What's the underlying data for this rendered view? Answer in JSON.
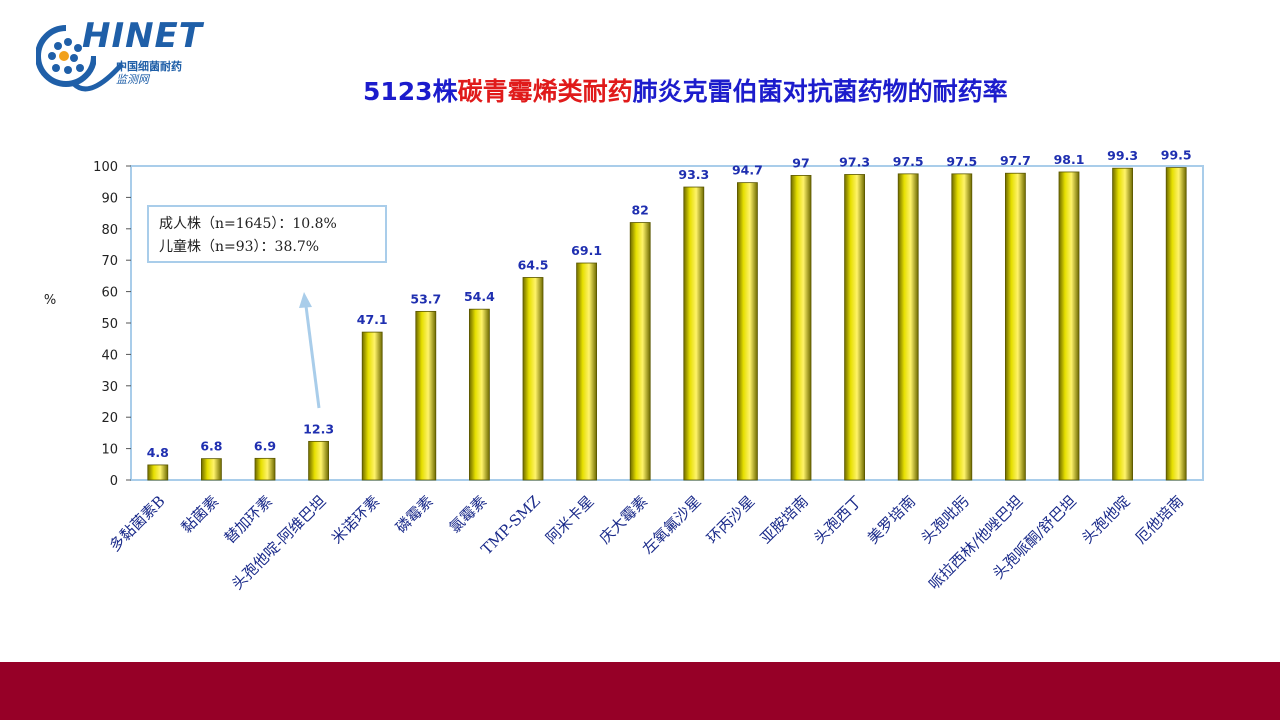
{
  "logo": {
    "text": "HINET",
    "cn_line1": "中国细菌耐药",
    "cn_line2": "监测网"
  },
  "title": {
    "part1": "5123株",
    "part2": "碳青霉烯类耐药",
    "part3": "肺炎克雷伯菌对抗菌药物的耐药率"
  },
  "colors": {
    "title_blue": "#1c1ccc",
    "title_red": "#e01b1b",
    "bar_fill": "#e6df00",
    "bar_edge": "#6e6a00",
    "value_label": "#1f2fb0",
    "frame": "#a9cdea",
    "footer": "#960027"
  },
  "chart_data": {
    "type": "bar",
    "ylabel": "%",
    "ylim": [
      0,
      100
    ],
    "yticks": [
      0,
      10,
      20,
      30,
      40,
      50,
      60,
      70,
      80,
      90,
      100
    ],
    "categories": [
      "多黏菌素B",
      "黏菌素",
      "替加环素",
      "头孢他啶-阿维巴坦",
      "米诺环素",
      "磷霉素",
      "氯霉素",
      "TMP-SMZ",
      "阿米卡星",
      "庆大霉素",
      "左氧氟沙星",
      "环丙沙星",
      "亚胺培南",
      "头孢西丁",
      "美罗培南",
      "头孢吡肟",
      "哌拉西林/他唑巴坦",
      "头孢哌酮/舒巴坦",
      "头孢他啶",
      "厄他培南"
    ],
    "values": [
      4.8,
      6.8,
      6.9,
      12.3,
      47.1,
      53.7,
      54.4,
      64.5,
      69.1,
      82,
      93.3,
      94.7,
      97,
      97.3,
      97.5,
      97.5,
      97.7,
      98.1,
      99.3,
      99.5
    ],
    "annotation": {
      "line1": "成人株（n=1645）：10.8%",
      "line2": "儿童株（n=93）：38.7%",
      "points_to": "头孢他啶-阿维巴坦"
    }
  }
}
